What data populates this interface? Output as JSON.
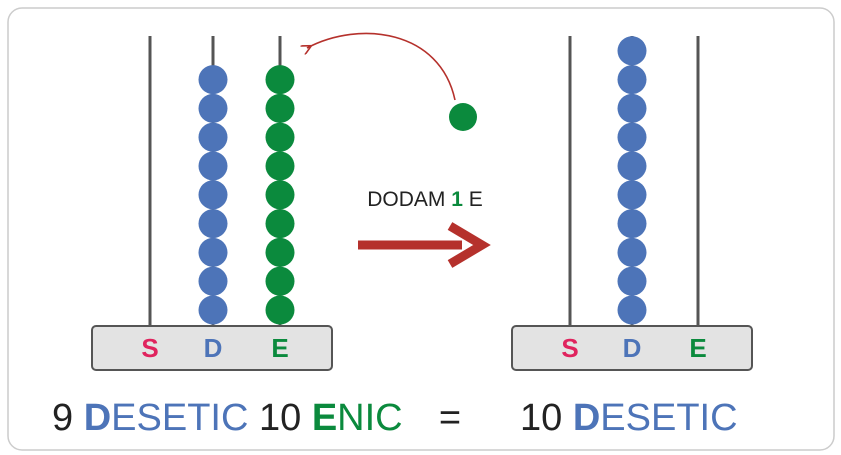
{
  "left_abacus": {
    "labels": [
      "S",
      "D",
      "E"
    ],
    "beads": [
      0,
      9,
      9
    ]
  },
  "right_abacus": {
    "labels": [
      "S",
      "D",
      "E"
    ],
    "beads": [
      0,
      10,
      0
    ]
  },
  "action": {
    "text_before": "DODAM",
    "number": "1",
    "text_after": "E"
  },
  "equation": {
    "left": [
      "9",
      "D",
      "ESETIC",
      "10",
      "E",
      "NIC"
    ],
    "sign": "=",
    "right": [
      "10",
      "D",
      "ESETIC"
    ]
  }
}
